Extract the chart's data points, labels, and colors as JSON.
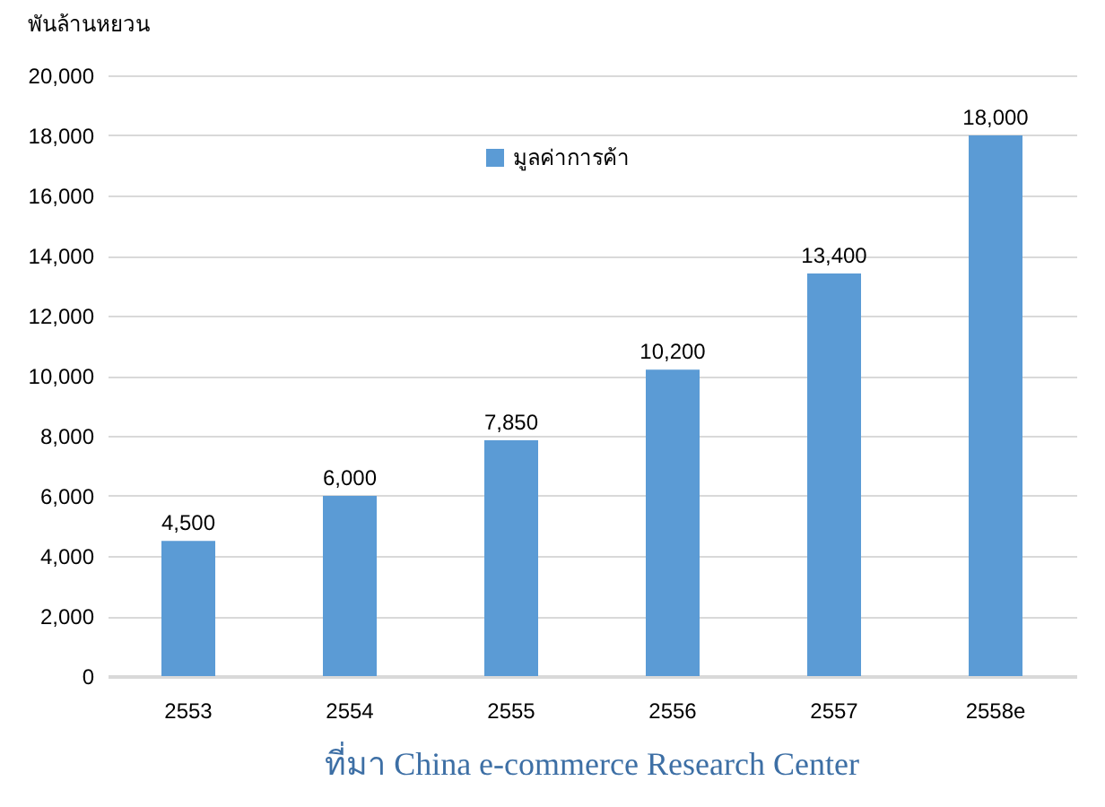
{
  "chart_data": {
    "type": "bar",
    "ylabel": "พันล้านหยวน",
    "categories": [
      "2553",
      "2554",
      "2555",
      "2556",
      "2557",
      "2558e"
    ],
    "series": [
      {
        "name": "มูลค่าการค้า",
        "color": "#5b9bd5",
        "values": [
          4500,
          6000,
          7850,
          10200,
          13400,
          18000
        ],
        "value_labels": [
          "4,500",
          "6,000",
          "7,850",
          "10,200",
          "13,400",
          "18,000"
        ]
      }
    ],
    "ylim": [
      0,
      20000
    ],
    "yticks": [
      0,
      {
        "value": 2000,
        "label": "2,000"
      },
      {
        "value": 4000,
        "label": "4,000"
      },
      {
        "value": 6000,
        "label": "6,000"
      },
      {
        "value": 8000,
        "label": "8,000"
      },
      {
        "value": 10000,
        "label": "10,000"
      },
      {
        "value": 12000,
        "label": "12,000"
      },
      {
        "value": 14000,
        "label": "14,000"
      },
      {
        "value": 16000,
        "label": "16,000"
      },
      {
        "value": 18000,
        "label": "18,000"
      },
      {
        "value": 20000,
        "label": "20,000"
      }
    ],
    "grid": "y",
    "legend": "top",
    "annotations": [
      "ที่มา China e-commerce Research Center"
    ]
  }
}
